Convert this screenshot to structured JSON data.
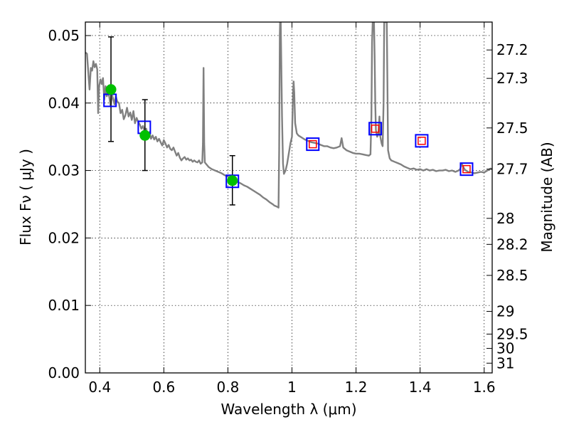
{
  "chart_data": {
    "type": "line",
    "title": "",
    "xlabel": "Wavelength  λ (μm)",
    "ylabel": "Flux  Fν  ( μJy )",
    "ylabel_right": "Magnitude (AB)",
    "xlim": [
      0.355,
      1.625
    ],
    "ylim": [
      0.0,
      0.052
    ],
    "grid": true,
    "x_ticks": [
      {
        "value": 0.4,
        "label": "0.4"
      },
      {
        "value": 0.6,
        "label": "0.6"
      },
      {
        "value": 0.8,
        "label": "0.8"
      },
      {
        "value": 1.0,
        "label": "1"
      },
      {
        "value": 1.2,
        "label": "1.2"
      },
      {
        "value": 1.4,
        "label": "1.4"
      },
      {
        "value": 1.6,
        "label": "1.6"
      }
    ],
    "y_ticks": [
      {
        "value": 0.0,
        "label": "0.00"
      },
      {
        "value": 0.01,
        "label": "0.01"
      },
      {
        "value": 0.02,
        "label": "0.02"
      },
      {
        "value": 0.03,
        "label": "0.03"
      },
      {
        "value": 0.04,
        "label": "0.04"
      },
      {
        "value": 0.05,
        "label": "0.05"
      }
    ],
    "mag_ticks": [
      {
        "mag": 27.2,
        "label": "27.2"
      },
      {
        "mag": 27.3,
        "label": "27.3"
      },
      {
        "mag": 27.5,
        "label": "27.5"
      },
      {
        "mag": 27.7,
        "label": "27.7"
      },
      {
        "mag": 28.0,
        "label": "28"
      },
      {
        "mag": 28.2,
        "label": "28.2"
      },
      {
        "mag": 28.5,
        "label": "28.5"
      },
      {
        "mag": 29.0,
        "label": "29"
      },
      {
        "mag": 29.5,
        "label": "29.5"
      },
      {
        "mag": 30.0,
        "label": "30"
      },
      {
        "mag": 31.0,
        "label": "31"
      }
    ],
    "colors": {
      "spectrum": "#808080",
      "observed": "#00c000",
      "model_box": "#0000ff",
      "model_inner": "#ff0000",
      "errorbar": "#000000",
      "grid": "#000000"
    },
    "series": [
      {
        "kind": "spectrum",
        "points": [
          [
            0.355,
            0.0475
          ],
          [
            0.36,
            0.0473
          ],
          [
            0.365,
            0.044
          ],
          [
            0.368,
            0.042
          ],
          [
            0.372,
            0.0452
          ],
          [
            0.376,
            0.0448
          ],
          [
            0.38,
            0.0462
          ],
          [
            0.384,
            0.0453
          ],
          [
            0.388,
            0.0458
          ],
          [
            0.392,
            0.045
          ],
          [
            0.395,
            0.0385
          ],
          [
            0.398,
            0.0425
          ],
          [
            0.402,
            0.0435
          ],
          [
            0.406,
            0.0428
          ],
          [
            0.41,
            0.0437
          ],
          [
            0.414,
            0.0405
          ],
          [
            0.418,
            0.0425
          ],
          [
            0.422,
            0.041
          ],
          [
            0.426,
            0.0419
          ],
          [
            0.43,
            0.0408
          ],
          [
            0.434,
            0.0395
          ],
          [
            0.438,
            0.0412
          ],
          [
            0.442,
            0.0406
          ],
          [
            0.446,
            0.0398
          ],
          [
            0.45,
            0.041
          ],
          [
            0.455,
            0.0402
          ],
          [
            0.46,
            0.04
          ],
          [
            0.465,
            0.0385
          ],
          [
            0.47,
            0.039
          ],
          [
            0.475,
            0.0376
          ],
          [
            0.48,
            0.0382
          ],
          [
            0.485,
            0.0393
          ],
          [
            0.49,
            0.038
          ],
          [
            0.495,
            0.0386
          ],
          [
            0.5,
            0.0375
          ],
          [
            0.505,
            0.0388
          ],
          [
            0.51,
            0.037
          ],
          [
            0.515,
            0.0378
          ],
          [
            0.52,
            0.0372
          ],
          [
            0.525,
            0.0368
          ],
          [
            0.53,
            0.0362
          ],
          [
            0.535,
            0.0366
          ],
          [
            0.54,
            0.0357
          ],
          [
            0.545,
            0.0362
          ],
          [
            0.55,
            0.0352
          ],
          [
            0.555,
            0.0357
          ],
          [
            0.56,
            0.0347
          ],
          [
            0.565,
            0.0352
          ],
          [
            0.57,
            0.0346
          ],
          [
            0.575,
            0.035
          ],
          [
            0.58,
            0.0343
          ],
          [
            0.585,
            0.0347
          ],
          [
            0.59,
            0.0342
          ],
          [
            0.595,
            0.0337
          ],
          [
            0.6,
            0.0345
          ],
          [
            0.605,
            0.034
          ],
          [
            0.61,
            0.0334
          ],
          [
            0.615,
            0.0338
          ],
          [
            0.62,
            0.0332
          ],
          [
            0.625,
            0.033
          ],
          [
            0.63,
            0.0334
          ],
          [
            0.635,
            0.0328
          ],
          [
            0.64,
            0.0322
          ],
          [
            0.645,
            0.0326
          ],
          [
            0.65,
            0.0319
          ],
          [
            0.655,
            0.0315
          ],
          [
            0.66,
            0.0318
          ],
          [
            0.665,
            0.032
          ],
          [
            0.67,
            0.0316
          ],
          [
            0.675,
            0.0318
          ],
          [
            0.68,
            0.0315
          ],
          [
            0.685,
            0.0316
          ],
          [
            0.69,
            0.0313
          ],
          [
            0.695,
            0.0315
          ],
          [
            0.7,
            0.0313
          ],
          [
            0.705,
            0.0312
          ],
          [
            0.71,
            0.0315
          ],
          [
            0.715,
            0.031
          ],
          [
            0.72,
            0.0312
          ],
          [
            0.722,
            0.034
          ],
          [
            0.724,
            0.0452
          ],
          [
            0.726,
            0.034
          ],
          [
            0.728,
            0.0312
          ],
          [
            0.735,
            0.0308
          ],
          [
            0.74,
            0.0305
          ],
          [
            0.75,
            0.0302
          ],
          [
            0.76,
            0.03
          ],
          [
            0.77,
            0.0298
          ],
          [
            0.78,
            0.0296
          ],
          [
            0.79,
            0.0293
          ],
          [
            0.8,
            0.0291
          ],
          [
            0.81,
            0.0288
          ],
          [
            0.82,
            0.0285
          ],
          [
            0.83,
            0.0283
          ],
          [
            0.84,
            0.0281
          ],
          [
            0.85,
            0.0278
          ],
          [
            0.86,
            0.0276
          ],
          [
            0.87,
            0.0273
          ],
          [
            0.88,
            0.027
          ],
          [
            0.89,
            0.0267
          ],
          [
            0.9,
            0.0264
          ],
          [
            0.91,
            0.026
          ],
          [
            0.92,
            0.0257
          ],
          [
            0.93,
            0.0253
          ],
          [
            0.94,
            0.025
          ],
          [
            0.945,
            0.0248
          ],
          [
            0.95,
            0.0247
          ],
          [
            0.955,
            0.0246
          ],
          [
            0.958,
            0.0245
          ],
          [
            0.96,
            0.033
          ],
          [
            0.962,
            0.05
          ],
          [
            0.963,
            0.052
          ],
          [
            0.965,
            0.052
          ],
          [
            0.967,
            0.045
          ],
          [
            0.969,
            0.038
          ],
          [
            0.972,
            0.031
          ],
          [
            0.975,
            0.0295
          ],
          [
            0.98,
            0.03
          ],
          [
            0.985,
            0.031
          ],
          [
            0.99,
            0.0325
          ],
          [
            0.995,
            0.034
          ],
          [
            1.0,
            0.035
          ],
          [
            1.003,
            0.041
          ],
          [
            1.005,
            0.0432
          ],
          [
            1.007,
            0.0415
          ],
          [
            1.01,
            0.037
          ],
          [
            1.015,
            0.0355
          ],
          [
            1.02,
            0.0352
          ],
          [
            1.03,
            0.0349
          ],
          [
            1.04,
            0.0346
          ],
          [
            1.05,
            0.0344
          ],
          [
            1.06,
            0.0342
          ],
          [
            1.07,
            0.0341
          ],
          [
            1.08,
            0.034
          ],
          [
            1.09,
            0.0338
          ],
          [
            1.1,
            0.0336
          ],
          [
            1.11,
            0.0336
          ],
          [
            1.12,
            0.0334
          ],
          [
            1.13,
            0.0333
          ],
          [
            1.14,
            0.0334
          ],
          [
            1.15,
            0.0336
          ],
          [
            1.155,
            0.0348
          ],
          [
            1.16,
            0.0334
          ],
          [
            1.17,
            0.033
          ],
          [
            1.18,
            0.0328
          ],
          [
            1.19,
            0.0326
          ],
          [
            1.2,
            0.0325
          ],
          [
            1.21,
            0.0325
          ],
          [
            1.22,
            0.0324
          ],
          [
            1.23,
            0.0323
          ],
          [
            1.24,
            0.0322
          ],
          [
            1.245,
            0.0324
          ],
          [
            1.248,
            0.038
          ],
          [
            1.25,
            0.049
          ],
          [
            1.252,
            0.052
          ],
          [
            1.256,
            0.052
          ],
          [
            1.258,
            0.047
          ],
          [
            1.26,
            0.04
          ],
          [
            1.262,
            0.036
          ],
          [
            1.266,
            0.035
          ],
          [
            1.27,
            0.0355
          ],
          [
            1.273,
            0.038
          ],
          [
            1.275,
            0.0352
          ],
          [
            1.28,
            0.034
          ],
          [
            1.283,
            0.0336
          ],
          [
            1.286,
            0.04
          ],
          [
            1.288,
            0.052
          ],
          [
            1.296,
            0.052
          ],
          [
            1.298,
            0.043
          ],
          [
            1.3,
            0.033
          ],
          [
            1.305,
            0.0318
          ],
          [
            1.31,
            0.0315
          ],
          [
            1.32,
            0.0313
          ],
          [
            1.33,
            0.0311
          ],
          [
            1.34,
            0.0309
          ],
          [
            1.35,
            0.0306
          ],
          [
            1.36,
            0.0304
          ],
          [
            1.37,
            0.0302
          ],
          [
            1.38,
            0.0303
          ],
          [
            1.39,
            0.0301
          ],
          [
            1.4,
            0.0302
          ],
          [
            1.41,
            0.03
          ],
          [
            1.42,
            0.0302
          ],
          [
            1.43,
            0.03
          ],
          [
            1.44,
            0.0301
          ],
          [
            1.45,
            0.0299
          ],
          [
            1.46,
            0.03
          ],
          [
            1.47,
            0.03
          ],
          [
            1.48,
            0.0301
          ],
          [
            1.49,
            0.0299
          ],
          [
            1.5,
            0.03
          ],
          [
            1.51,
            0.0298
          ],
          [
            1.52,
            0.03
          ],
          [
            1.525,
            0.0302
          ],
          [
            1.53,
            0.031
          ],
          [
            1.535,
            0.0305
          ],
          [
            1.54,
            0.0301
          ],
          [
            1.55,
            0.0298
          ],
          [
            1.56,
            0.0297
          ],
          [
            1.57,
            0.0296
          ],
          [
            1.58,
            0.0297
          ],
          [
            1.59,
            0.0298
          ],
          [
            1.6,
            0.0297
          ],
          [
            1.61,
            0.03
          ],
          [
            1.62,
            0.0303
          ],
          [
            1.625,
            0.0302
          ]
        ]
      },
      {
        "kind": "observed",
        "points": [
          {
            "x": 0.435,
            "y": 0.042,
            "yerr_low": 0.0343,
            "yerr_high": 0.0498
          },
          {
            "x": 0.541,
            "y": 0.0352,
            "yerr_low": 0.03,
            "yerr_high": 0.0405
          },
          {
            "x": 0.814,
            "y": 0.0285,
            "yerr_low": 0.0249,
            "yerr_high": 0.0322
          }
        ]
      },
      {
        "kind": "model",
        "points": [
          {
            "x": 0.432,
            "y": 0.0404,
            "inner": false
          },
          {
            "x": 0.539,
            "y": 0.0364,
            "inner": false
          },
          {
            "x": 0.814,
            "y": 0.0284,
            "inner": false
          },
          {
            "x": 1.065,
            "y": 0.0339,
            "inner": true
          },
          {
            "x": 1.26,
            "y": 0.0362,
            "inner": true
          },
          {
            "x": 1.405,
            "y": 0.0344,
            "inner": true
          },
          {
            "x": 1.545,
            "y": 0.0302,
            "inner": true
          }
        ]
      }
    ]
  }
}
